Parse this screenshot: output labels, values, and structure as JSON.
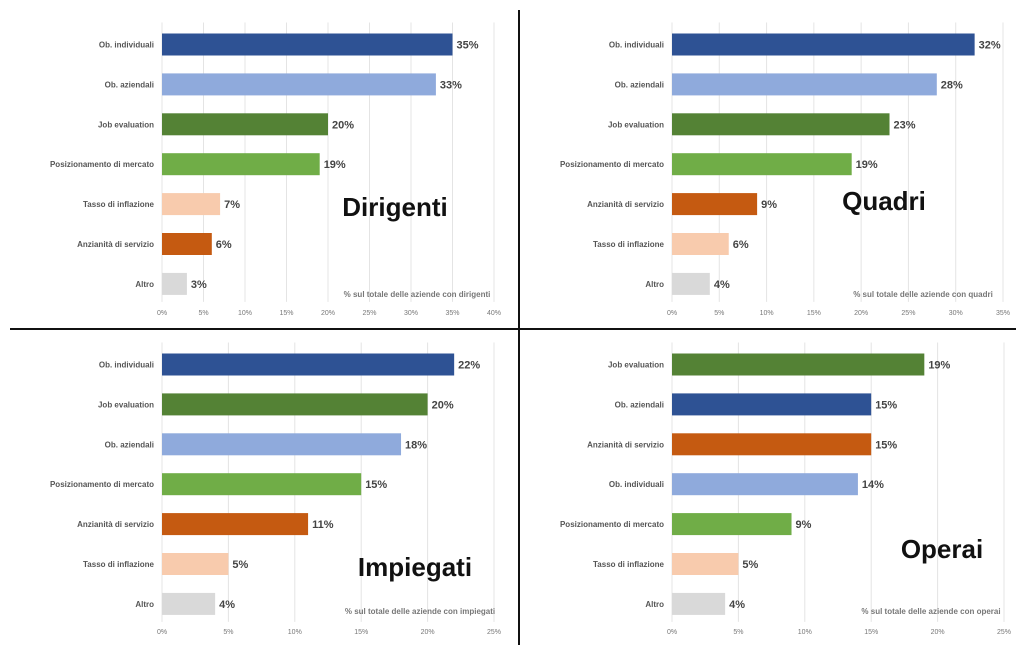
{
  "colors": {
    "dark_blue": "#2E5294",
    "light_blue": "#8FAADC",
    "dark_green": "#548235",
    "light_green": "#70AD47",
    "peach": "#F8CBAD",
    "orange": "#C55A11",
    "gray": "#D9D9D9"
  },
  "chart_data": [
    {
      "type": "bar",
      "orientation": "horizontal",
      "title": "Dirigenti",
      "note": "% sul totale delle aziende con dirigenti",
      "categories": [
        "Ob. individuali",
        "Ob. aziendali",
        "Job evaluation",
        "Posizionamento di mercato",
        "Tasso di inflazione",
        "Anzianità di servizio",
        "Altro"
      ],
      "values": [
        35,
        33,
        20,
        19,
        7,
        6,
        3
      ],
      "value_labels": [
        "35%",
        "33%",
        "20%",
        "19%",
        "7%",
        "6%",
        "3%"
      ],
      "bar_colors": [
        "#2E5294",
        "#8FAADC",
        "#548235",
        "#70AD47",
        "#F8CBAD",
        "#C55A11",
        "#D9D9D9"
      ],
      "xlim": [
        0,
        40
      ],
      "x_ticks": [
        0,
        5,
        10,
        15,
        20,
        25,
        30,
        35,
        40
      ],
      "x_tick_labels": [
        "0%",
        "5%",
        "10%",
        "15%",
        "20%",
        "25%",
        "30%",
        "35%",
        "40%"
      ],
      "grid": true,
      "legend": "none"
    },
    {
      "type": "bar",
      "orientation": "horizontal",
      "title": "Quadri",
      "note": "% sul totale delle aziende con quadri",
      "categories": [
        "Ob. individuali",
        "Ob. aziendali",
        "Job evaluation",
        "Posizionamento di mercato",
        "Anzianità di servizio",
        "Tasso di inflazione",
        "Altro"
      ],
      "values": [
        32,
        28,
        23,
        19,
        9,
        6,
        4
      ],
      "value_labels": [
        "32%",
        "28%",
        "23%",
        "19%",
        "9%",
        "6%",
        "4%"
      ],
      "bar_colors": [
        "#2E5294",
        "#8FAADC",
        "#548235",
        "#70AD47",
        "#C55A11",
        "#F8CBAD",
        "#D9D9D9"
      ],
      "xlim": [
        0,
        35
      ],
      "x_ticks": [
        0,
        5,
        10,
        15,
        20,
        25,
        30,
        35
      ],
      "x_tick_labels": [
        "0%",
        "5%",
        "10%",
        "15%",
        "20%",
        "25%",
        "30%",
        "35%"
      ],
      "grid": true,
      "legend": "none"
    },
    {
      "type": "bar",
      "orientation": "horizontal",
      "title": "Impiegati",
      "note": "% sul totale delle aziende con impiegati",
      "categories": [
        "Ob. individuali",
        "Job evaluation",
        "Ob. aziendali",
        "Posizionamento di mercato",
        "Anzianità di servizio",
        "Tasso di inflazione",
        "Altro"
      ],
      "values": [
        22,
        20,
        18,
        15,
        11,
        5,
        4
      ],
      "value_labels": [
        "22%",
        "20%",
        "18%",
        "15%",
        "11%",
        "5%",
        "4%"
      ],
      "bar_colors": [
        "#2E5294",
        "#548235",
        "#8FAADC",
        "#70AD47",
        "#C55A11",
        "#F8CBAD",
        "#D9D9D9"
      ],
      "xlim": [
        0,
        25
      ],
      "x_ticks": [
        0,
        5,
        10,
        15,
        20,
        25
      ],
      "x_tick_labels": [
        "0%",
        "5%",
        "10%",
        "15%",
        "20%",
        "25%"
      ],
      "grid": true,
      "legend": "none"
    },
    {
      "type": "bar",
      "orientation": "horizontal",
      "title": "Operai",
      "note": "% sul totale delle aziende con operai",
      "categories": [
        "Job evaluation",
        "Ob. aziendali",
        "Anzianità di servizio",
        "Ob. individuali",
        "Posizionamento di mercato",
        "Tasso di inflazione",
        "Altro"
      ],
      "values": [
        19,
        15,
        15,
        14,
        9,
        5,
        4
      ],
      "value_labels": [
        "19%",
        "15%",
        "15%",
        "14%",
        "9%",
        "5%",
        "4%"
      ],
      "bar_colors": [
        "#548235",
        "#2E5294",
        "#C55A11",
        "#8FAADC",
        "#70AD47",
        "#F8CBAD",
        "#D9D9D9"
      ],
      "xlim": [
        0,
        25
      ],
      "x_ticks": [
        0,
        5,
        10,
        15,
        20,
        25
      ],
      "x_tick_labels": [
        "0%",
        "5%",
        "10%",
        "15%",
        "20%",
        "25%"
      ],
      "grid": true,
      "legend": "none"
    }
  ]
}
